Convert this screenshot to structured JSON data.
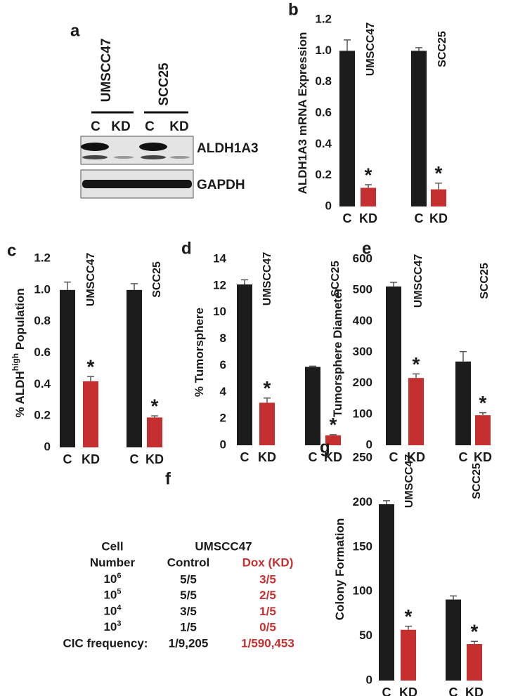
{
  "panel_a": {
    "label": "a",
    "groups": [
      "UMSCC47",
      "SCC25"
    ],
    "lanes": [
      "C",
      "KD",
      "C",
      "KD"
    ],
    "bands": [
      "ALDH1A3",
      "GAPDH"
    ]
  },
  "chart_data": [
    {
      "type": "bar",
      "label": "b",
      "y_label": [
        "ALDH1A3 mRNA Expression"
      ],
      "categories": [
        "C",
        "KD",
        "C",
        "KD"
      ],
      "values": [
        1.0,
        0.12,
        1.0,
        0.11
      ],
      "errors": [
        0.07,
        0.02,
        0.02,
        0.04
      ],
      "colors": [
        "#1c1c1c",
        "#c62f2f",
        "#1c1c1c",
        "#c62f2f"
      ],
      "groups": [
        "UMSCC47",
        "SCC25"
      ],
      "annotations": [
        "*",
        "*"
      ],
      "ylim": [
        0,
        1.2
      ],
      "yticks": [
        0,
        0.2,
        0.4,
        0.6,
        0.8,
        {
          "value": 1,
          "label": "1.0"
        },
        1.2
      ]
    },
    {
      "type": "bar",
      "label": "c",
      "y_label": [
        "% ALDH",
        "high",
        " Population"
      ],
      "categories": [
        "C",
        "KD",
        "C",
        "KD"
      ],
      "values": [
        1.0,
        0.42,
        1.0,
        0.19
      ],
      "errors": [
        0.05,
        0.03,
        0.04,
        0.01
      ],
      "colors": [
        "#1c1c1c",
        "#c62f2f",
        "#1c1c1c",
        "#c62f2f"
      ],
      "groups": [
        "UMSCC47",
        "SCC25"
      ],
      "annotations": [
        "*",
        "*"
      ],
      "ylim": [
        0,
        1.2
      ],
      "yticks": [
        0,
        0.2,
        0.4,
        0.6,
        0.8,
        {
          "value": 1,
          "label": "1.0"
        },
        1.2
      ]
    },
    {
      "type": "bar",
      "label": "d",
      "y_label": [
        "% Tumorsphere"
      ],
      "categories": [
        "C",
        "KD",
        "C",
        "KD"
      ],
      "values": [
        12.1,
        3.2,
        5.9,
        0.75
      ],
      "errors": [
        0.35,
        0.35,
        0.05,
        0.05
      ],
      "colors": [
        "#1c1c1c",
        "#c62f2f",
        "#1c1c1c",
        "#c62f2f"
      ],
      "groups": [
        "UMSCC47",
        "SCC25"
      ],
      "annotations": [
        "*",
        "*"
      ],
      "ylim": [
        0,
        14
      ],
      "yticks": [
        0,
        2,
        4,
        6,
        8,
        10,
        12,
        14
      ]
    },
    {
      "type": "bar",
      "label": "e",
      "y_label": [
        "Tumorsphere Diameter"
      ],
      "categories": [
        "C",
        "KD",
        "C",
        "KD"
      ],
      "values": [
        512,
        217,
        270,
        97
      ],
      "errors": [
        13,
        13,
        32,
        8
      ],
      "colors": [
        "#1c1c1c",
        "#c62f2f",
        "#1c1c1c",
        "#c62f2f"
      ],
      "groups": [
        "UMSCC47",
        "SCC25"
      ],
      "annotations": [
        "*",
        "*"
      ],
      "ylim": [
        0,
        600
      ],
      "yticks": [
        0,
        100,
        200,
        300,
        400,
        500,
        600
      ]
    },
    {
      "type": "bar",
      "label": "g",
      "y_label": [
        "Colony Formation"
      ],
      "categories": [
        "C",
        "KD",
        "C",
        "KD"
      ],
      "values": [
        198,
        57,
        91,
        41
      ],
      "errors": [
        4,
        4,
        4,
        3
      ],
      "colors": [
        "#1c1c1c",
        "#c62f2f",
        "#1c1c1c",
        "#c62f2f"
      ],
      "groups": [
        "UMSCC47",
        "SCC25"
      ],
      "annotations": [
        "*",
        "*"
      ],
      "ylim": [
        0,
        250
      ],
      "yticks": [
        0,
        50,
        100,
        150,
        200,
        250
      ]
    }
  ],
  "panel_f": {
    "label": "f",
    "header": {
      "cell": "Cell",
      "number": "Number",
      "group": "UMSCC47",
      "control": "Control",
      "dox": "Dox (KD)"
    },
    "rows": [
      {
        "base": "10",
        "exp": "6",
        "control": "5/5",
        "dox": "3/5"
      },
      {
        "base": "10",
        "exp": "5",
        "control": "5/5",
        "dox": "2/5"
      },
      {
        "base": "10",
        "exp": "4",
        "control": "3/5",
        "dox": "1/5"
      },
      {
        "base": "10",
        "exp": "3",
        "control": "1/5",
        "dox": "0/5"
      },
      {
        "name": "CIC frequency:",
        "control": "1/9,205",
        "dox": "1/590,453"
      }
    ]
  }
}
